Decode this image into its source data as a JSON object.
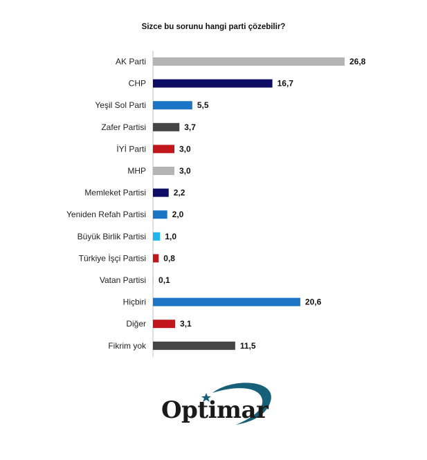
{
  "chart_data": {
    "type": "bar",
    "orientation": "horizontal",
    "title": "Sizce bu sorunu hangi parti çözebilir?",
    "categories": [
      "AK Parti",
      "CHP",
      "Yeşil Sol Parti",
      "Zafer Partisi",
      "İYİ Parti",
      "MHP",
      "Memleket Partisi",
      "Yeniden Refah Partisi",
      "Büyük Birlik Partisi",
      "Türkiye İşçi Partisi",
      "Vatan Partisi",
      "Hiçbiri",
      "Diğer",
      "Fikrim yok"
    ],
    "values": [
      26.8,
      16.7,
      5.5,
      3.7,
      3.0,
      3.0,
      2.2,
      2.0,
      1.0,
      0.8,
      0.1,
      20.6,
      3.1,
      11.5
    ],
    "value_labels": [
      "26,8",
      "16,7",
      "5,5",
      "3,7",
      "3,0",
      "3,0",
      "2,2",
      "2,0",
      "1,0",
      "0,8",
      "0,1",
      "20,6",
      "3,1",
      "11,5"
    ],
    "colors": [
      "#b4b4b4",
      "#0d0d63",
      "#1c74c7",
      "#454545",
      "#c0161c",
      "#b4b4b4",
      "#0d0d63",
      "#1c74c7",
      "#1fb6ef",
      "#c0161c",
      "#c9c9c9",
      "#1c74c7",
      "#c0161c",
      "#454545"
    ],
    "axis_color": "#bfbfbf",
    "xlim": [
      0,
      26.8
    ],
    "grid": false,
    "xlabel": "",
    "ylabel": ""
  },
  "logo": {
    "text": "Optimar",
    "arc_color": "#17607a",
    "star_color": "#17607a"
  }
}
